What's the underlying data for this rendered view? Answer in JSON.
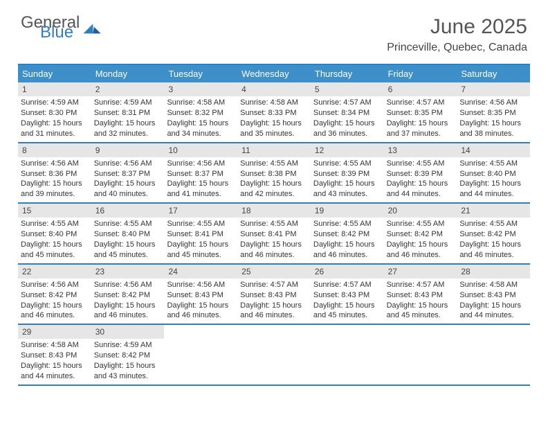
{
  "logo": {
    "word1": "General",
    "word2": "Blue",
    "color_general": "#555555",
    "color_blue": "#2f7fbf"
  },
  "title": "June 2025",
  "location": "Princeville, Quebec, Canada",
  "colors": {
    "header_bg": "#3d8fc9",
    "rule": "#2f7fbf",
    "daynum_bg": "#e6e6e6",
    "text": "#333333"
  },
  "daysOfWeek": [
    "Sunday",
    "Monday",
    "Tuesday",
    "Wednesday",
    "Thursday",
    "Friday",
    "Saturday"
  ],
  "weeks": [
    [
      {
        "n": "1",
        "sunrise": "Sunrise: 4:59 AM",
        "sunset": "Sunset: 8:30 PM",
        "daylight": "Daylight: 15 hours and 31 minutes."
      },
      {
        "n": "2",
        "sunrise": "Sunrise: 4:59 AM",
        "sunset": "Sunset: 8:31 PM",
        "daylight": "Daylight: 15 hours and 32 minutes."
      },
      {
        "n": "3",
        "sunrise": "Sunrise: 4:58 AM",
        "sunset": "Sunset: 8:32 PM",
        "daylight": "Daylight: 15 hours and 34 minutes."
      },
      {
        "n": "4",
        "sunrise": "Sunrise: 4:58 AM",
        "sunset": "Sunset: 8:33 PM",
        "daylight": "Daylight: 15 hours and 35 minutes."
      },
      {
        "n": "5",
        "sunrise": "Sunrise: 4:57 AM",
        "sunset": "Sunset: 8:34 PM",
        "daylight": "Daylight: 15 hours and 36 minutes."
      },
      {
        "n": "6",
        "sunrise": "Sunrise: 4:57 AM",
        "sunset": "Sunset: 8:35 PM",
        "daylight": "Daylight: 15 hours and 37 minutes."
      },
      {
        "n": "7",
        "sunrise": "Sunrise: 4:56 AM",
        "sunset": "Sunset: 8:35 PM",
        "daylight": "Daylight: 15 hours and 38 minutes."
      }
    ],
    [
      {
        "n": "8",
        "sunrise": "Sunrise: 4:56 AM",
        "sunset": "Sunset: 8:36 PM",
        "daylight": "Daylight: 15 hours and 39 minutes."
      },
      {
        "n": "9",
        "sunrise": "Sunrise: 4:56 AM",
        "sunset": "Sunset: 8:37 PM",
        "daylight": "Daylight: 15 hours and 40 minutes."
      },
      {
        "n": "10",
        "sunrise": "Sunrise: 4:56 AM",
        "sunset": "Sunset: 8:37 PM",
        "daylight": "Daylight: 15 hours and 41 minutes."
      },
      {
        "n": "11",
        "sunrise": "Sunrise: 4:55 AM",
        "sunset": "Sunset: 8:38 PM",
        "daylight": "Daylight: 15 hours and 42 minutes."
      },
      {
        "n": "12",
        "sunrise": "Sunrise: 4:55 AM",
        "sunset": "Sunset: 8:39 PM",
        "daylight": "Daylight: 15 hours and 43 minutes."
      },
      {
        "n": "13",
        "sunrise": "Sunrise: 4:55 AM",
        "sunset": "Sunset: 8:39 PM",
        "daylight": "Daylight: 15 hours and 44 minutes."
      },
      {
        "n": "14",
        "sunrise": "Sunrise: 4:55 AM",
        "sunset": "Sunset: 8:40 PM",
        "daylight": "Daylight: 15 hours and 44 minutes."
      }
    ],
    [
      {
        "n": "15",
        "sunrise": "Sunrise: 4:55 AM",
        "sunset": "Sunset: 8:40 PM",
        "daylight": "Daylight: 15 hours and 45 minutes."
      },
      {
        "n": "16",
        "sunrise": "Sunrise: 4:55 AM",
        "sunset": "Sunset: 8:40 PM",
        "daylight": "Daylight: 15 hours and 45 minutes."
      },
      {
        "n": "17",
        "sunrise": "Sunrise: 4:55 AM",
        "sunset": "Sunset: 8:41 PM",
        "daylight": "Daylight: 15 hours and 45 minutes."
      },
      {
        "n": "18",
        "sunrise": "Sunrise: 4:55 AM",
        "sunset": "Sunset: 8:41 PM",
        "daylight": "Daylight: 15 hours and 46 minutes."
      },
      {
        "n": "19",
        "sunrise": "Sunrise: 4:55 AM",
        "sunset": "Sunset: 8:42 PM",
        "daylight": "Daylight: 15 hours and 46 minutes."
      },
      {
        "n": "20",
        "sunrise": "Sunrise: 4:55 AM",
        "sunset": "Sunset: 8:42 PM",
        "daylight": "Daylight: 15 hours and 46 minutes."
      },
      {
        "n": "21",
        "sunrise": "Sunrise: 4:55 AM",
        "sunset": "Sunset: 8:42 PM",
        "daylight": "Daylight: 15 hours and 46 minutes."
      }
    ],
    [
      {
        "n": "22",
        "sunrise": "Sunrise: 4:56 AM",
        "sunset": "Sunset: 8:42 PM",
        "daylight": "Daylight: 15 hours and 46 minutes."
      },
      {
        "n": "23",
        "sunrise": "Sunrise: 4:56 AM",
        "sunset": "Sunset: 8:42 PM",
        "daylight": "Daylight: 15 hours and 46 minutes."
      },
      {
        "n": "24",
        "sunrise": "Sunrise: 4:56 AM",
        "sunset": "Sunset: 8:43 PM",
        "daylight": "Daylight: 15 hours and 46 minutes."
      },
      {
        "n": "25",
        "sunrise": "Sunrise: 4:57 AM",
        "sunset": "Sunset: 8:43 PM",
        "daylight": "Daylight: 15 hours and 46 minutes."
      },
      {
        "n": "26",
        "sunrise": "Sunrise: 4:57 AM",
        "sunset": "Sunset: 8:43 PM",
        "daylight": "Daylight: 15 hours and 45 minutes."
      },
      {
        "n": "27",
        "sunrise": "Sunrise: 4:57 AM",
        "sunset": "Sunset: 8:43 PM",
        "daylight": "Daylight: 15 hours and 45 minutes."
      },
      {
        "n": "28",
        "sunrise": "Sunrise: 4:58 AM",
        "sunset": "Sunset: 8:43 PM",
        "daylight": "Daylight: 15 hours and 44 minutes."
      }
    ],
    [
      {
        "n": "29",
        "sunrise": "Sunrise: 4:58 AM",
        "sunset": "Sunset: 8:43 PM",
        "daylight": "Daylight: 15 hours and 44 minutes."
      },
      {
        "n": "30",
        "sunrise": "Sunrise: 4:59 AM",
        "sunset": "Sunset: 8:42 PM",
        "daylight": "Daylight: 15 hours and 43 minutes."
      },
      {
        "empty": true
      },
      {
        "empty": true
      },
      {
        "empty": true
      },
      {
        "empty": true
      },
      {
        "empty": true
      }
    ]
  ]
}
